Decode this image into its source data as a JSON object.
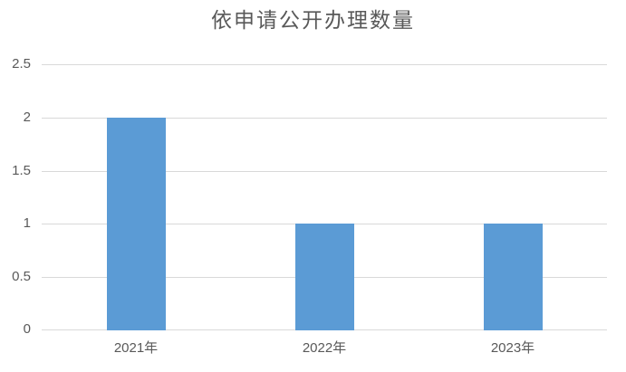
{
  "chart_data": {
    "type": "bar",
    "title": "依申请公开办理数量",
    "categories": [
      "2021年",
      "2022年",
      "2023年"
    ],
    "values": [
      2,
      1,
      1
    ],
    "xlabel": "",
    "ylabel": "",
    "ylim": [
      0,
      2.5
    ],
    "yticks": [
      0,
      0.5,
      1,
      1.5,
      2,
      2.5
    ],
    "grid": true,
    "legend": false,
    "bar_width_fraction": 0.3125,
    "colors": {
      "bar": "#5B9BD5",
      "gridline": "#D9D9D9",
      "axis_text": "#595959",
      "title_text": "#595959",
      "background": "#FFFFFF"
    }
  }
}
